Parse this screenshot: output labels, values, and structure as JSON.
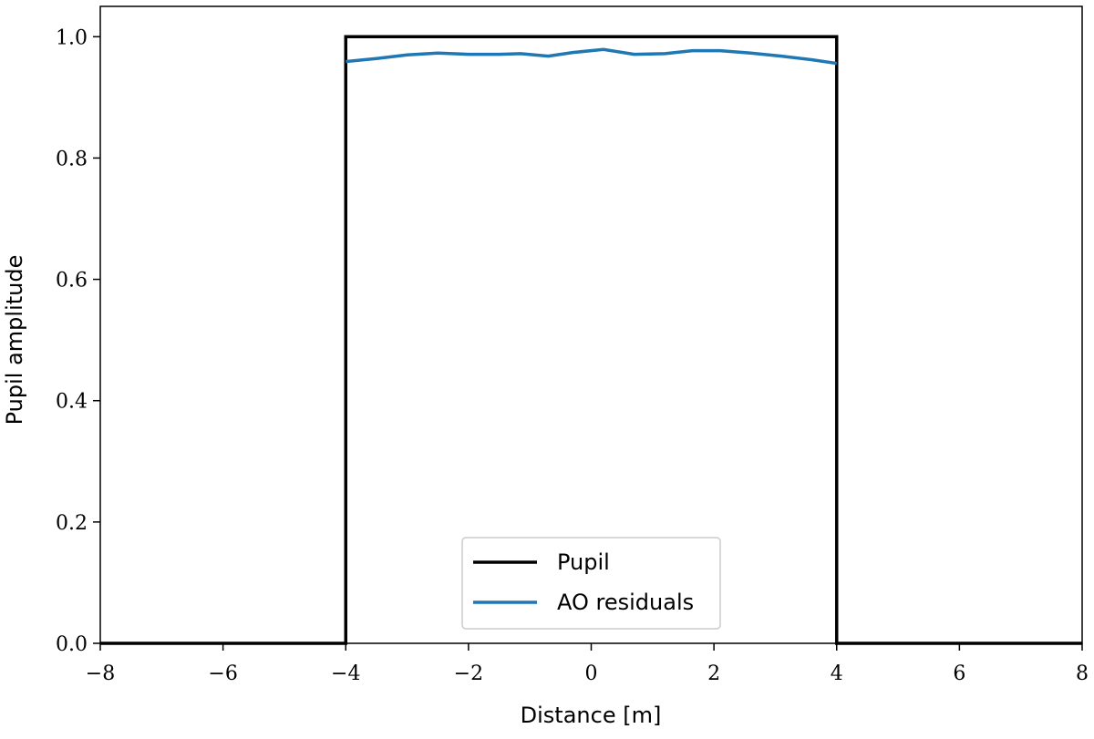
{
  "chart_data": {
    "type": "line",
    "xlabel": "Distance [m]",
    "ylabel": "Pupil amplitude",
    "xlim": [
      -8,
      8
    ],
    "ylim": [
      0,
      1.05
    ],
    "xticks": [
      {
        "value": -8,
        "label": "−8"
      },
      {
        "value": -6,
        "label": "−6"
      },
      {
        "value": -4,
        "label": "−4"
      },
      {
        "value": -2,
        "label": "−2"
      },
      0,
      2,
      4,
      6,
      8
    ],
    "yticks": [
      {
        "value": 0,
        "label": "0.0"
      },
      0.2,
      0.4,
      0.6,
      0.8,
      {
        "value": 1,
        "label": "1.0"
      }
    ],
    "legend": "lower center",
    "series": [
      {
        "name": "Pupil",
        "color": "#000000",
        "x": [
          -8,
          -4,
          -4,
          4,
          4,
          8
        ],
        "values": [
          0,
          0,
          1,
          1,
          0,
          0
        ]
      },
      {
        "name": "AO residuals",
        "color": "#1f77b4",
        "x": [
          -4,
          -3.5,
          -3,
          -2.5,
          -2,
          -1.5,
          -1.15,
          -0.7,
          -0.3,
          0.2,
          0.7,
          1.2,
          1.65,
          2.1,
          2.6,
          3.1,
          3.6,
          4
        ],
        "values": [
          0.959,
          0.964,
          0.97,
          0.973,
          0.971,
          0.971,
          0.972,
          0.968,
          0.974,
          0.979,
          0.971,
          0.972,
          0.977,
          0.977,
          0.973,
          0.968,
          0.962,
          0.956
        ]
      }
    ]
  }
}
